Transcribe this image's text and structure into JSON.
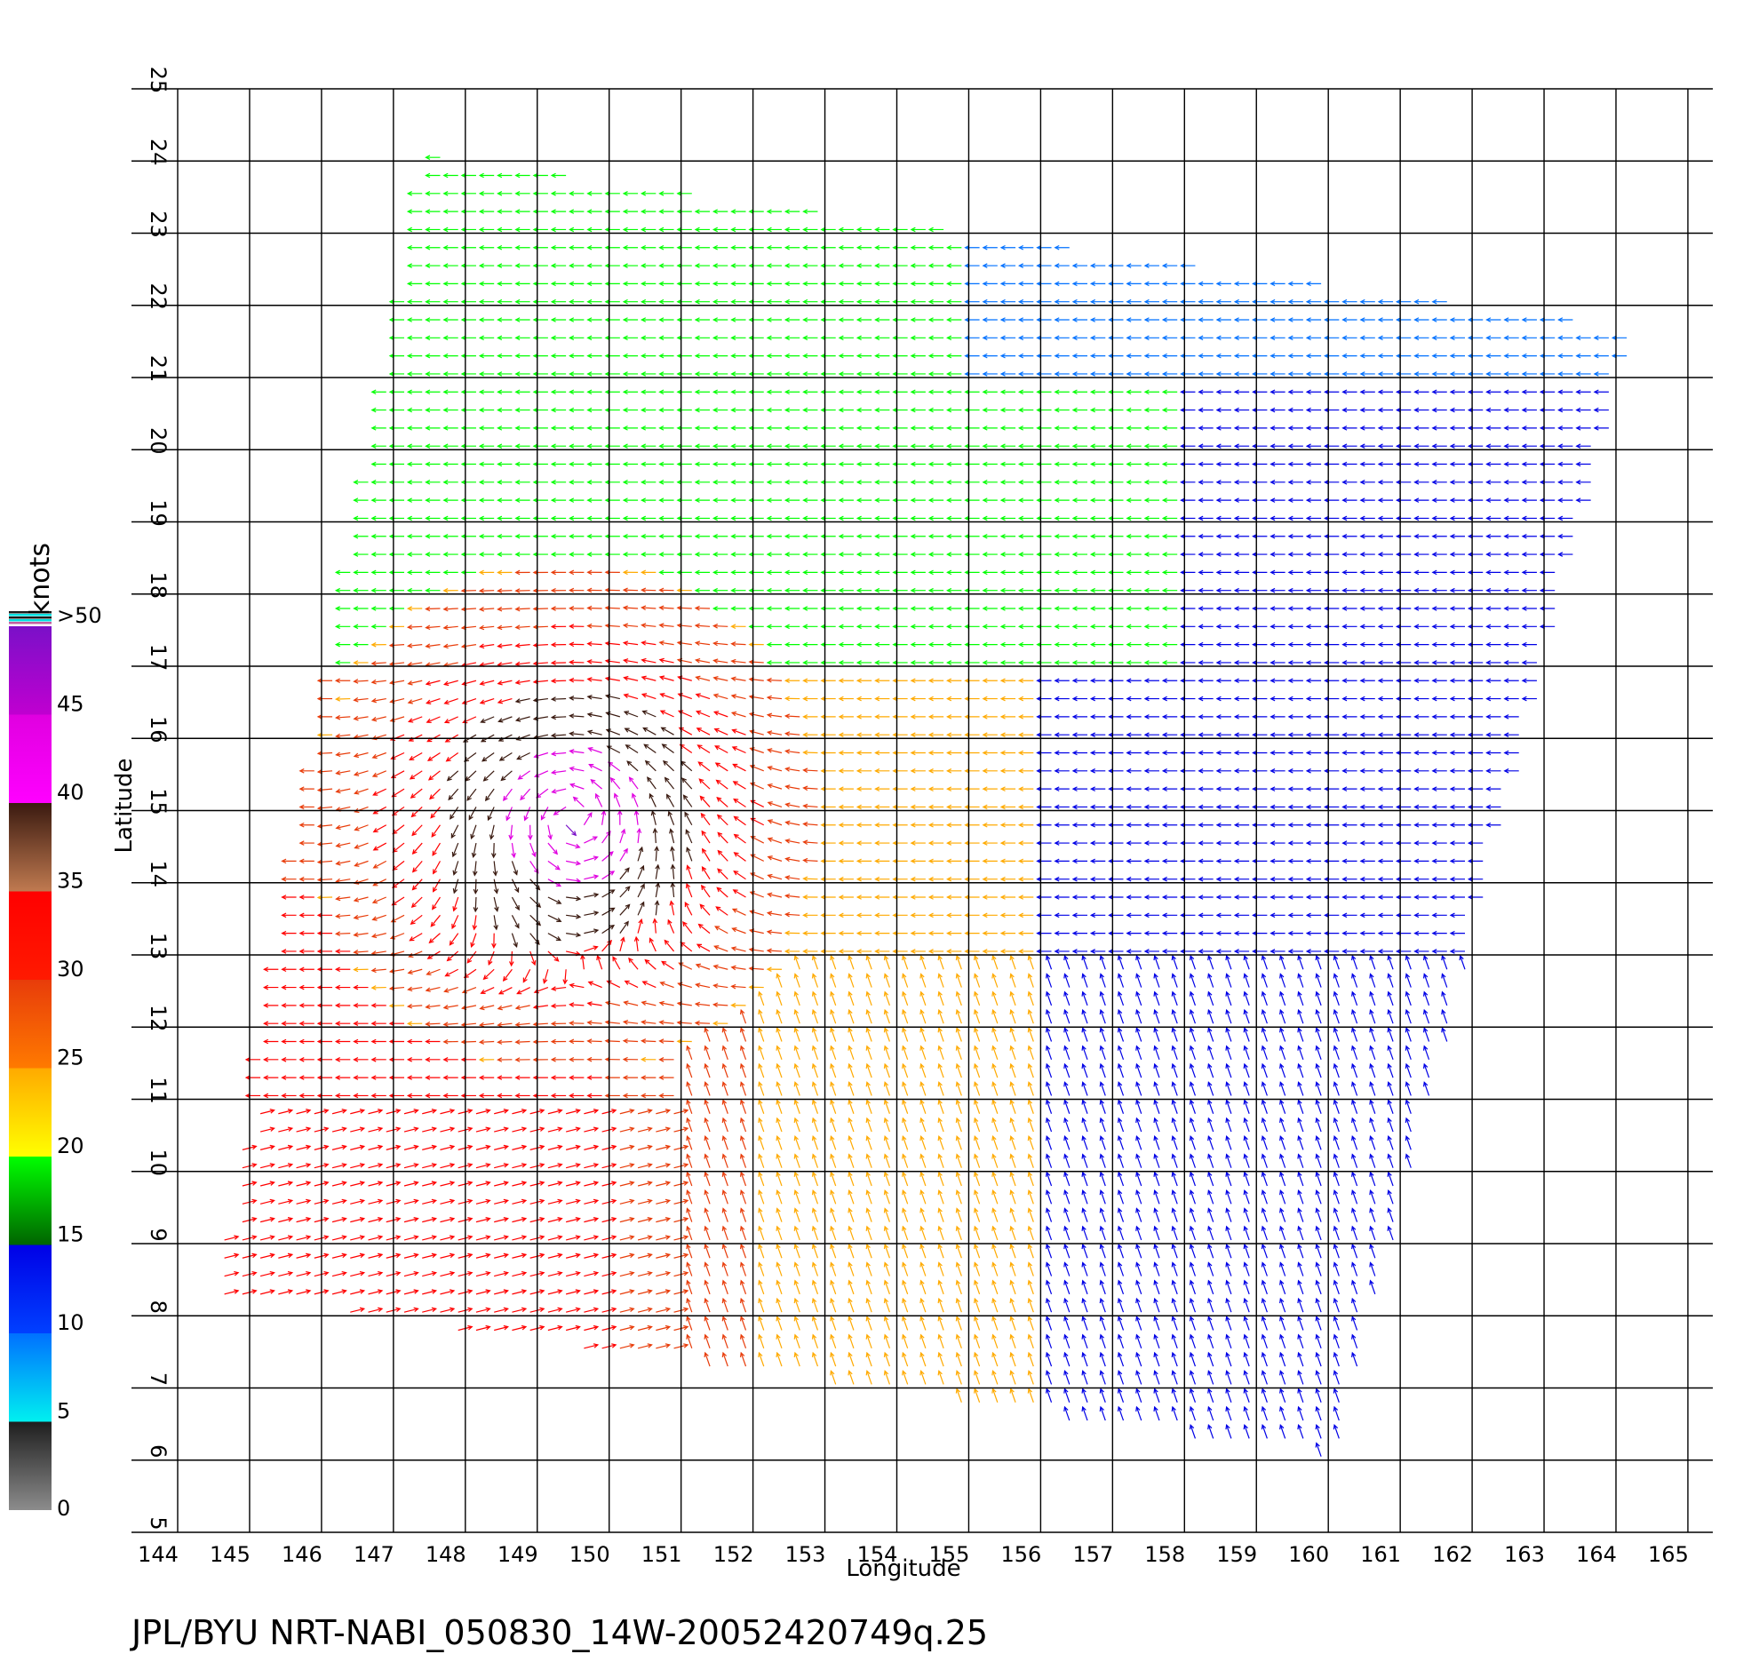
{
  "chart_data": {
    "type": "wind-vector-map",
    "xlabel": "Longitude",
    "ylabel": "Latitude",
    "xlim": [
      144,
      165
    ],
    "ylim": [
      5,
      25
    ],
    "x_ticks": [
      "144",
      "145",
      "146",
      "147",
      "148",
      "149",
      "150",
      "151",
      "152",
      "153",
      "154",
      "155",
      "156",
      "157",
      "158",
      "159",
      "160",
      "161",
      "162",
      "163",
      "164",
      "165"
    ],
    "y_ticks": [
      "5",
      "6",
      "7",
      "8",
      "9",
      "10",
      "11",
      "12",
      "13",
      "14",
      "15",
      "16",
      "17",
      "18",
      "19",
      "20",
      "21",
      "22",
      "23",
      "24",
      "25"
    ],
    "grid": true,
    "colorbar": {
      "unit_label": "knots",
      "labels": [
        "0",
        "5",
        "10",
        "15",
        "20",
        "25",
        "30",
        "35",
        "40",
        "45",
        ">50"
      ],
      "bins": [
        {
          "range": [
            0,
            5
          ],
          "color_low": "#8c8c8c",
          "color_high": "#1e1e1e"
        },
        {
          "range": [
            5,
            10
          ],
          "color_low": "#00f0f0",
          "color_high": "#0070ff"
        },
        {
          "range": [
            10,
            15
          ],
          "color_low": "#0040ff",
          "color_high": "#0000e6"
        },
        {
          "range": [
            15,
            20
          ],
          "color_low": "#006400",
          "color_high": "#00ff00"
        },
        {
          "range": [
            20,
            25
          ],
          "color_low": "#ffff00",
          "color_high": "#ffaa00"
        },
        {
          "range": [
            25,
            30
          ],
          "color_low": "#ff7a00",
          "color_high": "#e83c0a"
        },
        {
          "range": [
            30,
            35
          ],
          "color_low": "#ff1a00",
          "color_high": "#ff0000"
        },
        {
          "range": [
            35,
            40
          ],
          "color_low": "#c07a50",
          "color_high": "#3a1a10"
        },
        {
          "range": [
            40,
            45
          ],
          "color_low": "#ff00ff",
          "color_high": "#e000e0"
        },
        {
          "range": [
            45,
            50
          ],
          "color_low": "#c000d0",
          "color_high": "#7a10c8"
        }
      ]
    },
    "swath": {
      "corners_lonlat": [
        [
          147.5,
          24.1
        ],
        [
          164.3,
          21.7
        ],
        [
          160.1,
          6.0
        ],
        [
          144.5,
          8.3
        ]
      ]
    },
    "storm_center": [
      149.5,
      14.9
    ],
    "cyclone_eye_radius_deg": 1.6
  },
  "footer": {
    "text": "JPL/BYU  NRT-NABI_050830_14W-20052420749q.25"
  }
}
